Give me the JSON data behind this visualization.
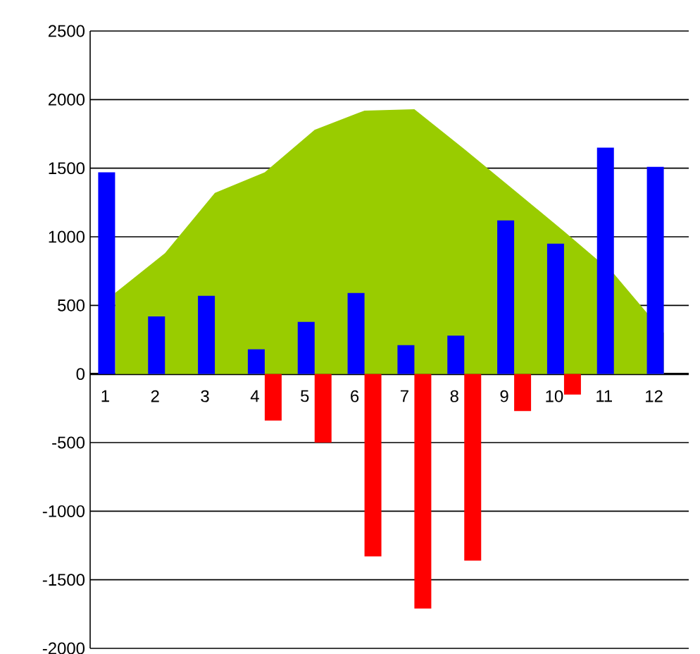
{
  "chart_data": {
    "type": "bar",
    "categories": [
      "1",
      "2",
      "3",
      "4",
      "5",
      "6",
      "7",
      "8",
      "9",
      "10",
      "11",
      "12"
    ],
    "series": [
      {
        "type": "area",
        "color": "#99cc00",
        "values": [
          590,
          880,
          1320,
          1470,
          1780,
          1920,
          1930,
          1640,
          1340,
          1040,
          730,
          300
        ]
      },
      {
        "color": "#0000ff",
        "values": [
          1470,
          420,
          570,
          180,
          380,
          590,
          210,
          280,
          1120,
          950,
          1650,
          1510
        ]
      },
      {
        "color": "#ff0000",
        "values": [
          null,
          null,
          null,
          -340,
          -500,
          -1330,
          -1710,
          -1360,
          -270,
          -150,
          null,
          null
        ]
      }
    ],
    "ylim": [
      -2000,
      2500
    ],
    "yticks": [
      -2000,
      -1500,
      -1000,
      -500,
      0,
      500,
      1000,
      1500,
      2000,
      2500
    ],
    "grid": "y"
  }
}
